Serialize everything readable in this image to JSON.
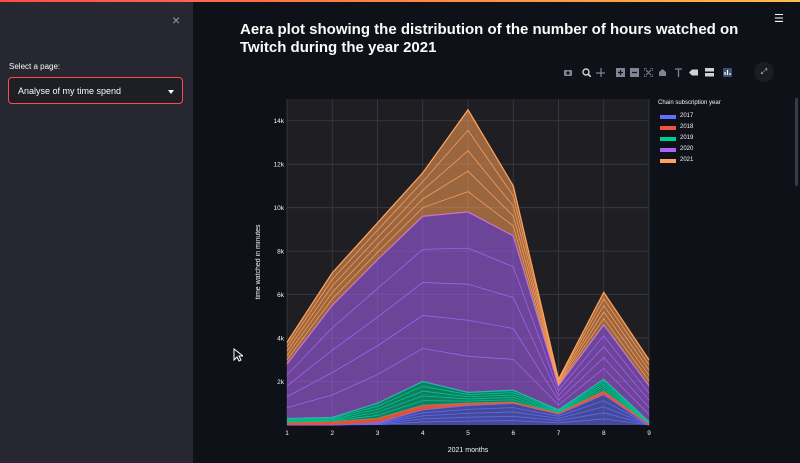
{
  "sidebar": {
    "close_glyph": "×",
    "select_label": "Select a page:",
    "select_value": "Analyse of my time spend"
  },
  "header": {
    "menu_glyph": "☰"
  },
  "main": {
    "title": "Aera plot showing the distribution of the number of hours watched on Twitch during the year 2021",
    "expand_glyph": "⤢"
  },
  "toolbar": {
    "icons": [
      "camera-icon",
      "zoom-icon",
      "pan-icon",
      "zoom-in-icon",
      "zoom-out-icon",
      "autoscale-icon",
      "reset-axes-icon",
      "spike-lines-icon",
      "hover-closest-icon",
      "hover-compare-icon",
      "plotly-logo-icon"
    ]
  },
  "chart_data": {
    "type": "area",
    "title": "Aera plot showing the distribution of the number of hours watched on Twitch during the year 2021",
    "xlabel": "2021 months",
    "ylabel": "time watched in minutes",
    "x": [
      1,
      2,
      3,
      4,
      5,
      6,
      7,
      8,
      9
    ],
    "xlim": [
      1,
      9
    ],
    "ylim": [
      0,
      15000
    ],
    "yticks": [
      2000,
      4000,
      6000,
      8000,
      10000,
      12000,
      14000
    ],
    "ytick_labels": [
      "2k",
      "4k",
      "6k",
      "8k",
      "10k",
      "12k",
      "14k"
    ],
    "xtick_labels": [
      "1",
      "2",
      "3",
      "4",
      "5",
      "6",
      "7",
      "8",
      "9"
    ],
    "grid": true,
    "legend_title": "Chain subscription year",
    "legend_position": "top-right",
    "series": [
      {
        "name": "2017",
        "color": "#636efa",
        "values": [
          0,
          0,
          100,
          700,
          900,
          1000,
          500,
          1400,
          0
        ]
      },
      {
        "name": "2018",
        "color": "#ef553b",
        "values": [
          100,
          150,
          300,
          900,
          1000,
          1050,
          550,
          1550,
          50
        ]
      },
      {
        "name": "2019",
        "color": "#00cc96",
        "values": [
          300,
          350,
          1000,
          2000,
          1500,
          1600,
          700,
          2100,
          150
        ]
      },
      {
        "name": "2020",
        "color": "#ab63fa",
        "values": [
          2800,
          5500,
          7600,
          9600,
          9800,
          8700,
          1800,
          4600,
          1800
        ]
      },
      {
        "name": "2021",
        "color": "#ffa15a",
        "values": [
          3800,
          7000,
          9300,
          11600,
          14500,
          11000,
          2100,
          6100,
          3000
        ]
      }
    ],
    "colors": {
      "background": "#0e1117",
      "sidebar": "#262730",
      "plot_bg": "#1f1f23",
      "accent": "#ff4b4b"
    }
  }
}
